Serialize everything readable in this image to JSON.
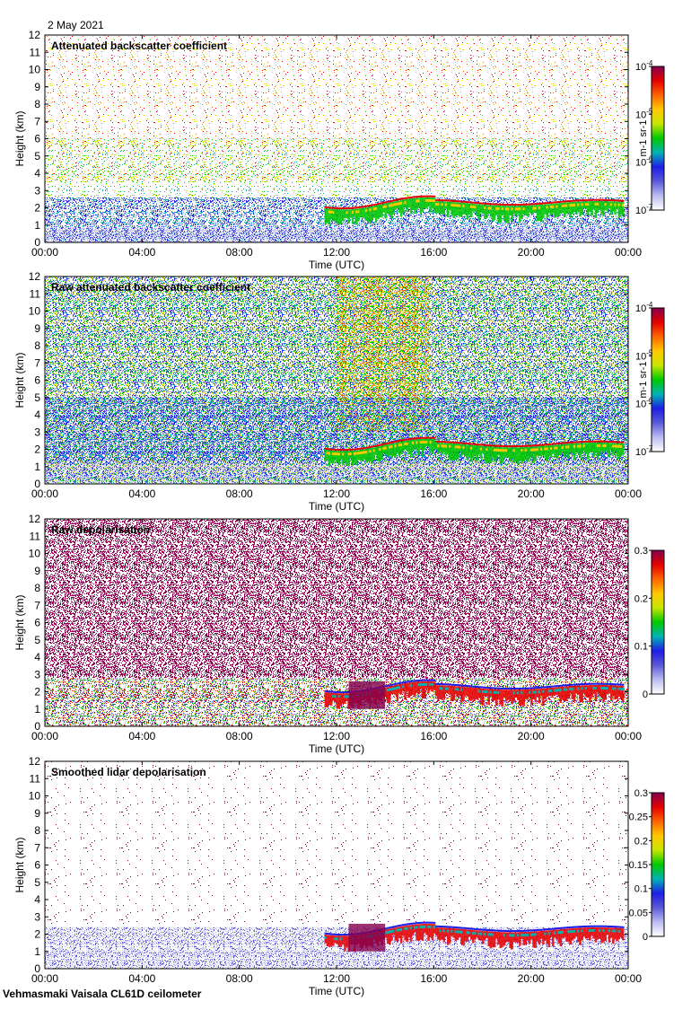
{
  "header": {
    "date": "2 May 2021"
  },
  "footer": {
    "site": "Vehmasmaki Vaisala CL61D ceilometer"
  },
  "chart_data": [
    {
      "type": "heatmap",
      "title": "Attenuated backscatter coefficient",
      "xlabel": "Time (UTC)",
      "ylabel": "Height (km)",
      "x_ticks": [
        "00:00",
        "04:00",
        "08:00",
        "12:00",
        "16:00",
        "20:00",
        "00:00"
      ],
      "y_ticks": [
        "0",
        "1",
        "2",
        "3",
        "4",
        "5",
        "6",
        "7",
        "8",
        "9",
        "10",
        "11",
        "12"
      ],
      "ylim": [
        0,
        12
      ],
      "colorbar": {
        "scale": "log",
        "range": [
          1e-07,
          0.0001
        ],
        "unit_label": "m-1 sr-1",
        "ticks": [
          {
            "base": "10",
            "exp": "-4"
          },
          {
            "base": "10",
            "exp": "-5"
          },
          {
            "base": "10",
            "exp": "-6"
          },
          {
            "base": "10",
            "exp": "-7"
          }
        ]
      },
      "cloud_layer_base_km": {
        "start_time": "12:00",
        "end_time": "00:00",
        "approx_height": 2.5
      }
    },
    {
      "type": "heatmap",
      "title": "Raw attenuated backscatter coefficient",
      "xlabel": "Time (UTC)",
      "ylabel": "Height (km)",
      "x_ticks": [
        "00:00",
        "04:00",
        "08:00",
        "12:00",
        "16:00",
        "20:00",
        "00:00"
      ],
      "y_ticks": [
        "0",
        "1",
        "2",
        "3",
        "4",
        "5",
        "6",
        "7",
        "8",
        "9",
        "10",
        "11",
        "12"
      ],
      "ylim": [
        0,
        12
      ],
      "colorbar": {
        "scale": "log",
        "range": [
          1e-07,
          0.0001
        ],
        "unit_label": "m-1 sr-1",
        "ticks": [
          {
            "base": "10",
            "exp": "-4"
          },
          {
            "base": "10",
            "exp": "-5"
          },
          {
            "base": "10",
            "exp": "-6"
          },
          {
            "base": "10",
            "exp": "-7"
          }
        ]
      }
    },
    {
      "type": "heatmap",
      "title": "Raw depolarisation",
      "xlabel": "Time (UTC)",
      "ylabel": "Height (km)",
      "x_ticks": [
        "00:00",
        "04:00",
        "08:00",
        "12:00",
        "16:00",
        "20:00",
        "00:00"
      ],
      "y_ticks": [
        "0",
        "1",
        "2",
        "3",
        "4",
        "5",
        "6",
        "7",
        "8",
        "9",
        "10",
        "11",
        "12"
      ],
      "ylim": [
        0,
        12
      ],
      "colorbar": {
        "scale": "linear",
        "range": [
          0,
          0.3
        ],
        "ticks": [
          "0.3",
          "0.2",
          "0.1",
          "0"
        ]
      }
    },
    {
      "type": "heatmap",
      "title": "Smoothed lidar depolarisation",
      "xlabel": "Time (UTC)",
      "ylabel": "Height (km)",
      "x_ticks": [
        "00:00",
        "04:00",
        "08:00",
        "12:00",
        "16:00",
        "20:00",
        "00:00"
      ],
      "y_ticks": [
        "0",
        "1",
        "2",
        "3",
        "4",
        "5",
        "6",
        "7",
        "8",
        "9",
        "10",
        "11",
        "12"
      ],
      "ylim": [
        0,
        12
      ],
      "colorbar": {
        "scale": "linear",
        "range": [
          0,
          0.3
        ],
        "ticks": [
          "0.3",
          "0.25",
          "0.2",
          "0.15",
          "0.1",
          "0.05",
          "0"
        ]
      }
    }
  ],
  "colors": {
    "colormap": [
      "#ffffff",
      "#bcbcf0",
      "#5a5ad8",
      "#1e1ee6",
      "#00b4b4",
      "#00c800",
      "#c8e600",
      "#ffc800",
      "#ff6400",
      "#e60000",
      "#82004e"
    ]
  }
}
